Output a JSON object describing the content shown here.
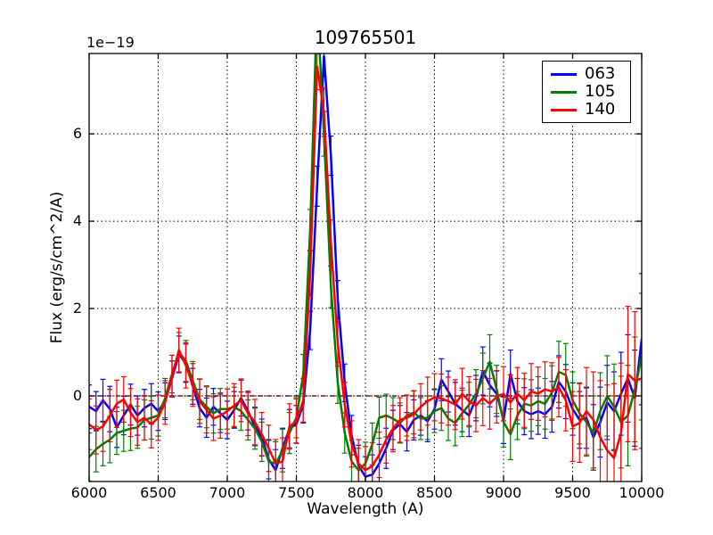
{
  "chart_data": {
    "type": "line",
    "title": "109765501",
    "xlabel": "Wavelength (A)",
    "ylabel": "Flux (erg/s/cm^2/A)",
    "offset_text": "1e−19",
    "flux_unit_scale": "1e-19",
    "xlim": [
      6000,
      10000
    ],
    "ylim": [
      -1.96,
      7.84
    ],
    "x_ticks": [
      6000,
      6500,
      7000,
      7500,
      8000,
      8500,
      9000,
      9500,
      10000
    ],
    "y_ticks": [
      0,
      2,
      4,
      6
    ],
    "grid": "dotted black, on all ticks",
    "zero_line": "black dashed with red dotted overlay at y=0",
    "zero_line_overlay_color": "#ff0000",
    "legend_position": "upper right",
    "x": [
      6000,
      6050,
      6100,
      6150,
      6200,
      6250,
      6300,
      6350,
      6400,
      6450,
      6500,
      6550,
      6600,
      6650,
      6700,
      6750,
      6800,
      6850,
      6900,
      6950,
      7000,
      7050,
      7100,
      7150,
      7200,
      7250,
      7300,
      7350,
      7400,
      7450,
      7500,
      7550,
      7600,
      7650,
      7700,
      7750,
      7800,
      7850,
      7900,
      7950,
      8000,
      8050,
      8100,
      8150,
      8200,
      8250,
      8300,
      8350,
      8400,
      8450,
      8500,
      8550,
      8600,
      8650,
      8700,
      8750,
      8800,
      8850,
      8900,
      8950,
      9000,
      9050,
      9100,
      9150,
      9200,
      9250,
      9300,
      9350,
      9400,
      9450,
      9500,
      9550,
      9600,
      9650,
      9700,
      9750,
      9800,
      9850,
      9900,
      9950,
      10000
    ],
    "series": [
      {
        "name": "063",
        "color": "#0000ff",
        "values": [
          -0.25,
          -0.35,
          -0.1,
          -0.3,
          -0.72,
          -0.45,
          -0.2,
          -0.45,
          -0.28,
          -0.18,
          -0.35,
          -0.12,
          0.4,
          0.95,
          0.75,
          0.22,
          -0.28,
          -0.5,
          -0.25,
          -0.4,
          -0.55,
          -0.32,
          -0.05,
          -0.35,
          -0.7,
          -0.95,
          -1.45,
          -1.7,
          -1.2,
          -0.75,
          -0.65,
          -0.2,
          1.5,
          4.8,
          7.78,
          5.5,
          2.2,
          0.3,
          -0.9,
          -1.6,
          -1.85,
          -1.8,
          -1.55,
          -1.2,
          -0.78,
          -0.65,
          -0.82,
          -0.55,
          -0.45,
          -0.58,
          -0.3,
          0.37,
          0.1,
          -0.18,
          -0.32,
          -0.45,
          -0.05,
          0.57,
          0.25,
          0.05,
          -0.55,
          0.5,
          -0.12,
          -0.35,
          -0.42,
          -0.35,
          -0.42,
          -0.25,
          0.32,
          0.1,
          -0.3,
          -0.55,
          -0.5,
          -0.95,
          -0.6,
          -0.15,
          -0.35,
          0.05,
          0.4,
          -0.05,
          1.3
        ],
        "errors": [
          0.5,
          0.45,
          0.48,
          0.52,
          0.46,
          0.44,
          0.47,
          0.45,
          0.43,
          0.46,
          0.44,
          0.42,
          0.4,
          0.42,
          0.44,
          0.41,
          0.43,
          0.45,
          0.42,
          0.44,
          0.43,
          0.42,
          0.41,
          0.43,
          0.44,
          0.42,
          0.45,
          0.47,
          0.46,
          0.44,
          0.43,
          0.42,
          0.44,
          0.46,
          0.48,
          0.45,
          0.44,
          0.43,
          0.45,
          0.47,
          0.46,
          0.45,
          0.44,
          0.46,
          0.45,
          0.43,
          0.44,
          0.46,
          0.45,
          0.47,
          0.46,
          0.48,
          0.47,
          0.49,
          0.5,
          0.48,
          0.52,
          0.55,
          0.5,
          0.52,
          0.54,
          0.55,
          0.52,
          0.54,
          0.56,
          0.53,
          0.55,
          0.58,
          0.6,
          0.62,
          0.6,
          0.65,
          0.7,
          0.75,
          0.8,
          0.85,
          0.9,
          0.95,
          1.0,
          1.1,
          1.5
        ]
      },
      {
        "name": "105",
        "color": "#008000",
        "values": [
          -1.4,
          -1.22,
          -1.1,
          -1.0,
          -0.85,
          -0.8,
          -0.75,
          -0.72,
          -0.55,
          -0.5,
          -0.45,
          -0.05,
          0.5,
          1.0,
          0.8,
          0.35,
          -0.08,
          -0.25,
          -0.4,
          -0.3,
          -0.3,
          -0.25,
          -0.35,
          -0.55,
          -0.75,
          -1.05,
          -1.5,
          -1.55,
          -1.25,
          -0.85,
          -0.5,
          0.5,
          3.8,
          9.0,
          6.0,
          2.5,
          0.3,
          -0.85,
          -1.5,
          -1.7,
          -1.55,
          -1.1,
          -0.5,
          -0.45,
          -0.52,
          -0.62,
          -0.45,
          -0.38,
          -0.52,
          -0.5,
          -0.35,
          -0.28,
          -0.52,
          -0.62,
          -0.4,
          -0.2,
          0.05,
          0.4,
          0.78,
          0.15,
          -0.6,
          -0.88,
          -0.45,
          -0.18,
          -0.22,
          -0.12,
          -0.18,
          0.08,
          0.55,
          0.48,
          -0.1,
          -0.4,
          -0.6,
          -0.85,
          -0.35,
          0.0,
          -0.25,
          -0.6,
          -0.45,
          0.15,
          0.9
        ],
        "errors": [
          0.55,
          0.52,
          0.5,
          0.53,
          0.49,
          0.47,
          0.5,
          0.48,
          0.46,
          0.49,
          0.47,
          0.45,
          0.43,
          0.45,
          0.47,
          0.44,
          0.46,
          0.48,
          0.45,
          0.47,
          0.46,
          0.45,
          0.44,
          0.46,
          0.47,
          0.45,
          0.48,
          0.5,
          0.49,
          0.47,
          0.46,
          0.45,
          0.47,
          0.49,
          0.51,
          0.48,
          0.47,
          0.46,
          0.48,
          0.5,
          0.49,
          0.48,
          0.47,
          0.49,
          0.48,
          0.46,
          0.47,
          0.49,
          0.48,
          0.5,
          0.49,
          0.51,
          0.5,
          0.52,
          0.53,
          0.51,
          0.55,
          0.58,
          0.62,
          0.55,
          0.57,
          0.58,
          0.55,
          0.57,
          0.59,
          0.56,
          0.58,
          0.61,
          0.7,
          0.72,
          0.65,
          0.7,
          0.78,
          0.85,
          0.88,
          0.92,
          0.98,
          1.05,
          1.15,
          1.2,
          1.45
        ]
      },
      {
        "name": "140",
        "color": "#ff0000",
        "values": [
          -0.65,
          -0.78,
          -0.7,
          -0.45,
          -0.18,
          -0.08,
          -0.38,
          -0.6,
          -0.5,
          -0.65,
          -0.5,
          -0.15,
          0.45,
          1.05,
          0.7,
          0.25,
          -0.12,
          -0.32,
          -0.52,
          -0.45,
          -0.35,
          -0.22,
          -0.1,
          -0.4,
          -0.6,
          -0.88,
          -1.2,
          -1.55,
          -1.5,
          -0.7,
          -0.58,
          -0.1,
          2.8,
          7.55,
          6.5,
          3.5,
          1.2,
          -0.2,
          -1.1,
          -1.55,
          -1.7,
          -1.6,
          -1.35,
          -1.0,
          -0.75,
          -0.55,
          -0.5,
          -0.42,
          -0.25,
          -0.12,
          -0.03,
          -0.06,
          -0.12,
          -0.2,
          0.05,
          -0.12,
          -0.22,
          -0.05,
          -0.18,
          -0.02,
          0.05,
          -0.15,
          0.05,
          -0.1,
          0.1,
          0.05,
          0.15,
          0.1,
          0.2,
          -0.1,
          -0.7,
          -0.62,
          -0.35,
          -0.55,
          -0.95,
          -1.25,
          -1.42,
          -0.85,
          0.5,
          0.35,
          0.4
        ],
        "errors": [
          0.58,
          0.55,
          0.57,
          0.6,
          0.54,
          0.52,
          0.55,
          0.53,
          0.51,
          0.54,
          0.52,
          0.5,
          0.48,
          0.5,
          0.52,
          0.49,
          0.51,
          0.53,
          0.5,
          0.52,
          0.51,
          0.5,
          0.49,
          0.51,
          0.52,
          0.5,
          0.53,
          0.55,
          0.54,
          0.52,
          0.51,
          0.5,
          0.52,
          0.54,
          0.56,
          0.53,
          0.52,
          0.51,
          0.53,
          0.55,
          0.54,
          0.53,
          0.52,
          0.54,
          0.53,
          0.51,
          0.52,
          0.54,
          0.53,
          0.55,
          0.54,
          0.56,
          0.55,
          0.57,
          0.58,
          0.56,
          0.6,
          0.63,
          0.58,
          0.6,
          0.62,
          0.63,
          0.6,
          0.62,
          0.64,
          0.61,
          0.63,
          0.66,
          0.68,
          0.7,
          0.8,
          0.9,
          1.0,
          1.1,
          1.3,
          1.5,
          1.7,
          1.6,
          1.55,
          1.58,
          1.6
        ]
      }
    ]
  }
}
